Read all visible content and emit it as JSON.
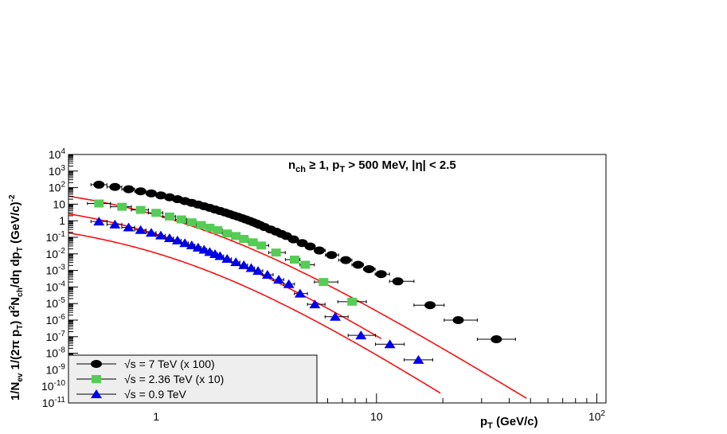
{
  "chart_data": {
    "type": "scatter",
    "title": "",
    "annotation_html": "n<tspan font-size='11' dy='4'>ch</tspan><tspan dy='-4'> ≥ 1, p</tspan><tspan font-size='11' dy='4'>T</tspan><tspan dy='-4'> &gt; 500 MeV, |η| &lt; 2.5</tspan>",
    "xlabel_html": "p<tspan font-size='11' dy='4'>T</tspan><tspan dy='-4'> (GeV/c)</tspan>",
    "ylabel_html": "1/N<tspan font-size='10' dy='4'>ev</tspan><tspan dy='-4'> 1/(2π p</tspan><tspan font-size='10' dy='4'>T</tspan><tspan dy='-4'>) d</tspan><tspan font-size='10' dy='-6'>2</tspan><tspan dy='6'>N</tspan><tspan font-size='10' dy='4'>ch</tspan><tspan dy='-4'>/dη dp</tspan><tspan font-size='10' dy='4'>T</tspan><tspan dy='-4'> (GeV/c)</tspan><tspan font-size='10' dy='-6'>-2</tspan>",
    "x_scale": "log",
    "y_scale": "log",
    "xlim": [
      0.4,
      110
    ],
    "ylim": [
      1e-11,
      10000.0
    ],
    "x_ticks": [
      {
        "value": 1,
        "label": "1"
      },
      {
        "value": 10,
        "label": "10"
      },
      {
        "value": 100,
        "label": "10<tspan font-size='10' dy='-6'>2</tspan>"
      }
    ],
    "y_ticks": [
      {
        "value": 10000.0,
        "label": "10<tspan font-size='10' dy='-6'>4</tspan>"
      },
      {
        "value": 1000.0,
        "label": "10<tspan font-size='10' dy='-6'>3</tspan>"
      },
      {
        "value": 100.0,
        "label": "10<tspan font-size='10' dy='-6'>2</tspan>"
      },
      {
        "value": 10.0,
        "label": "10"
      },
      {
        "value": 1.0,
        "label": "1"
      },
      {
        "value": 0.1,
        "label": "10<tspan font-size='10' dy='-6'>-1</tspan>"
      },
      {
        "value": 0.01,
        "label": "10<tspan font-size='10' dy='-6'>-2</tspan>"
      },
      {
        "value": 0.001,
        "label": "10<tspan font-size='10' dy='-6'>-3</tspan>"
      },
      {
        "value": 0.0001,
        "label": "10<tspan font-size='10' dy='-6'>-4</tspan>"
      },
      {
        "value": 1e-05,
        "label": "10<tspan font-size='10' dy='-6'>-5</tspan>"
      },
      {
        "value": 1e-06,
        "label": "10<tspan font-size='10' dy='-6'>-6</tspan>"
      },
      {
        "value": 1e-07,
        "label": "10<tspan font-size='10' dy='-6'>-7</tspan>"
      },
      {
        "value": 1e-08,
        "label": "10<tspan font-size='10' dy='-6'>-8</tspan>"
      },
      {
        "value": 1e-09,
        "label": "10<tspan font-size='10' dy='-6'>-9</tspan>"
      },
      {
        "value": 1e-10,
        "label": "10<tspan font-size='10' dy='-6'>-10</tspan>"
      },
      {
        "value": 1e-11,
        "label": "10<tspan font-size='10' dy='-6'>-11</tspan>"
      }
    ],
    "grid": false,
    "legend_position": "bottom-left",
    "fit_color": "#ff0000",
    "series": [
      {
        "name_html": "√s = 7 TeV (x 100)",
        "marker": "circle",
        "color": "#000000",
        "points": [
          [
            0.55,
            150
          ],
          [
            0.65,
            110
          ],
          [
            0.75,
            80
          ],
          [
            0.85,
            60
          ],
          [
            0.95,
            45
          ],
          [
            1.05,
            34
          ],
          [
            1.15,
            26
          ],
          [
            1.25,
            20
          ],
          [
            1.35,
            15.5
          ],
          [
            1.45,
            12
          ],
          [
            1.55,
            9.5
          ],
          [
            1.65,
            7.5
          ],
          [
            1.75,
            6
          ],
          [
            1.85,
            4.8
          ],
          [
            1.95,
            3.9
          ],
          [
            2.05,
            3.2
          ],
          [
            2.15,
            2.6
          ],
          [
            2.25,
            2.1
          ],
          [
            2.35,
            1.75
          ],
          [
            2.45,
            1.45
          ],
          [
            2.55,
            1.2
          ],
          [
            2.65,
            1.0
          ],
          [
            2.75,
            0.82
          ],
          [
            2.85,
            0.68
          ],
          [
            2.95,
            0.56
          ],
          [
            3.1,
            0.42
          ],
          [
            3.3,
            0.3
          ],
          [
            3.5,
            0.22
          ],
          [
            3.7,
            0.16
          ],
          [
            3.9,
            0.12
          ],
          [
            4.2,
            0.075
          ],
          [
            4.6,
            0.045
          ],
          [
            5.0,
            0.028
          ],
          [
            5.5,
            0.016
          ],
          [
            6.25,
            0.0085
          ],
          [
            7.25,
            0.0042
          ],
          [
            8.25,
            0.0022
          ],
          [
            9.25,
            0.0012
          ],
          [
            10.5,
            0.0006
          ],
          [
            12.5,
            0.00022
          ],
          [
            17.5,
            8e-06
          ],
          [
            23.5,
            1e-06
          ],
          [
            35.0,
            7e-08
          ]
        ],
        "fit": {
          "A": 320,
          "pt0": 1.2,
          "n": 8.2,
          "x_from": 0.4,
          "x_to": 48
        }
      },
      {
        "name_html": "√s = 2.36 TeV (x 10)",
        "marker": "square",
        "color": "#55cc55",
        "points": [
          [
            0.55,
            11
          ],
          [
            0.7,
            7
          ],
          [
            0.85,
            4.5
          ],
          [
            1.0,
            3
          ],
          [
            1.15,
            1.8
          ],
          [
            1.3,
            1.2
          ],
          [
            1.45,
            0.8
          ],
          [
            1.6,
            0.55
          ],
          [
            1.75,
            0.38
          ],
          [
            1.9,
            0.27
          ],
          [
            2.1,
            0.17
          ],
          [
            2.3,
            0.12
          ],
          [
            2.5,
            0.08
          ],
          [
            2.75,
            0.05
          ],
          [
            3.0,
            0.032
          ],
          [
            3.5,
            0.012
          ],
          [
            4.25,
            0.0045
          ],
          [
            4.75,
            0.0022
          ],
          [
            5.75,
            0.0002
          ],
          [
            7.75,
            1.3e-05
          ]
        ],
        "fit": {
          "A": 34,
          "pt0": 1.15,
          "n": 8.6,
          "x_from": 0.4,
          "x_to": 10.5
        }
      },
      {
        "name_html": "√s = 0.9 TeV",
        "marker": "triangle",
        "color": "#0000ee",
        "points": [
          [
            0.55,
            0.9
          ],
          [
            0.65,
            0.6
          ],
          [
            0.75,
            0.4
          ],
          [
            0.85,
            0.28
          ],
          [
            0.95,
            0.19
          ],
          [
            1.05,
            0.13
          ],
          [
            1.15,
            0.09
          ],
          [
            1.25,
            0.065
          ],
          [
            1.35,
            0.045
          ],
          [
            1.45,
            0.033
          ],
          [
            1.55,
            0.024
          ],
          [
            1.65,
            0.018
          ],
          [
            1.75,
            0.013
          ],
          [
            1.85,
            0.0098
          ],
          [
            1.95,
            0.0074
          ],
          [
            2.1,
            0.005
          ],
          [
            2.3,
            0.0032
          ],
          [
            2.5,
            0.0021
          ],
          [
            2.7,
            0.0014
          ],
          [
            2.9,
            0.00095
          ],
          [
            3.2,
            0.00055
          ],
          [
            3.6,
            0.00028
          ],
          [
            4.0,
            0.00015
          ],
          [
            4.5,
            4e-05
          ],
          [
            5.25,
            9e-06
          ],
          [
            6.5,
            1.6e-06
          ],
          [
            8.5,
            1.2e-07
          ],
          [
            11.5,
            3.5e-08
          ],
          [
            15.5,
            4e-09
          ]
        ],
        "fit": {
          "A": 2.4,
          "pt0": 1.15,
          "n": 8.6,
          "x_from": 0.4,
          "x_to": 19.5
        }
      }
    ]
  }
}
